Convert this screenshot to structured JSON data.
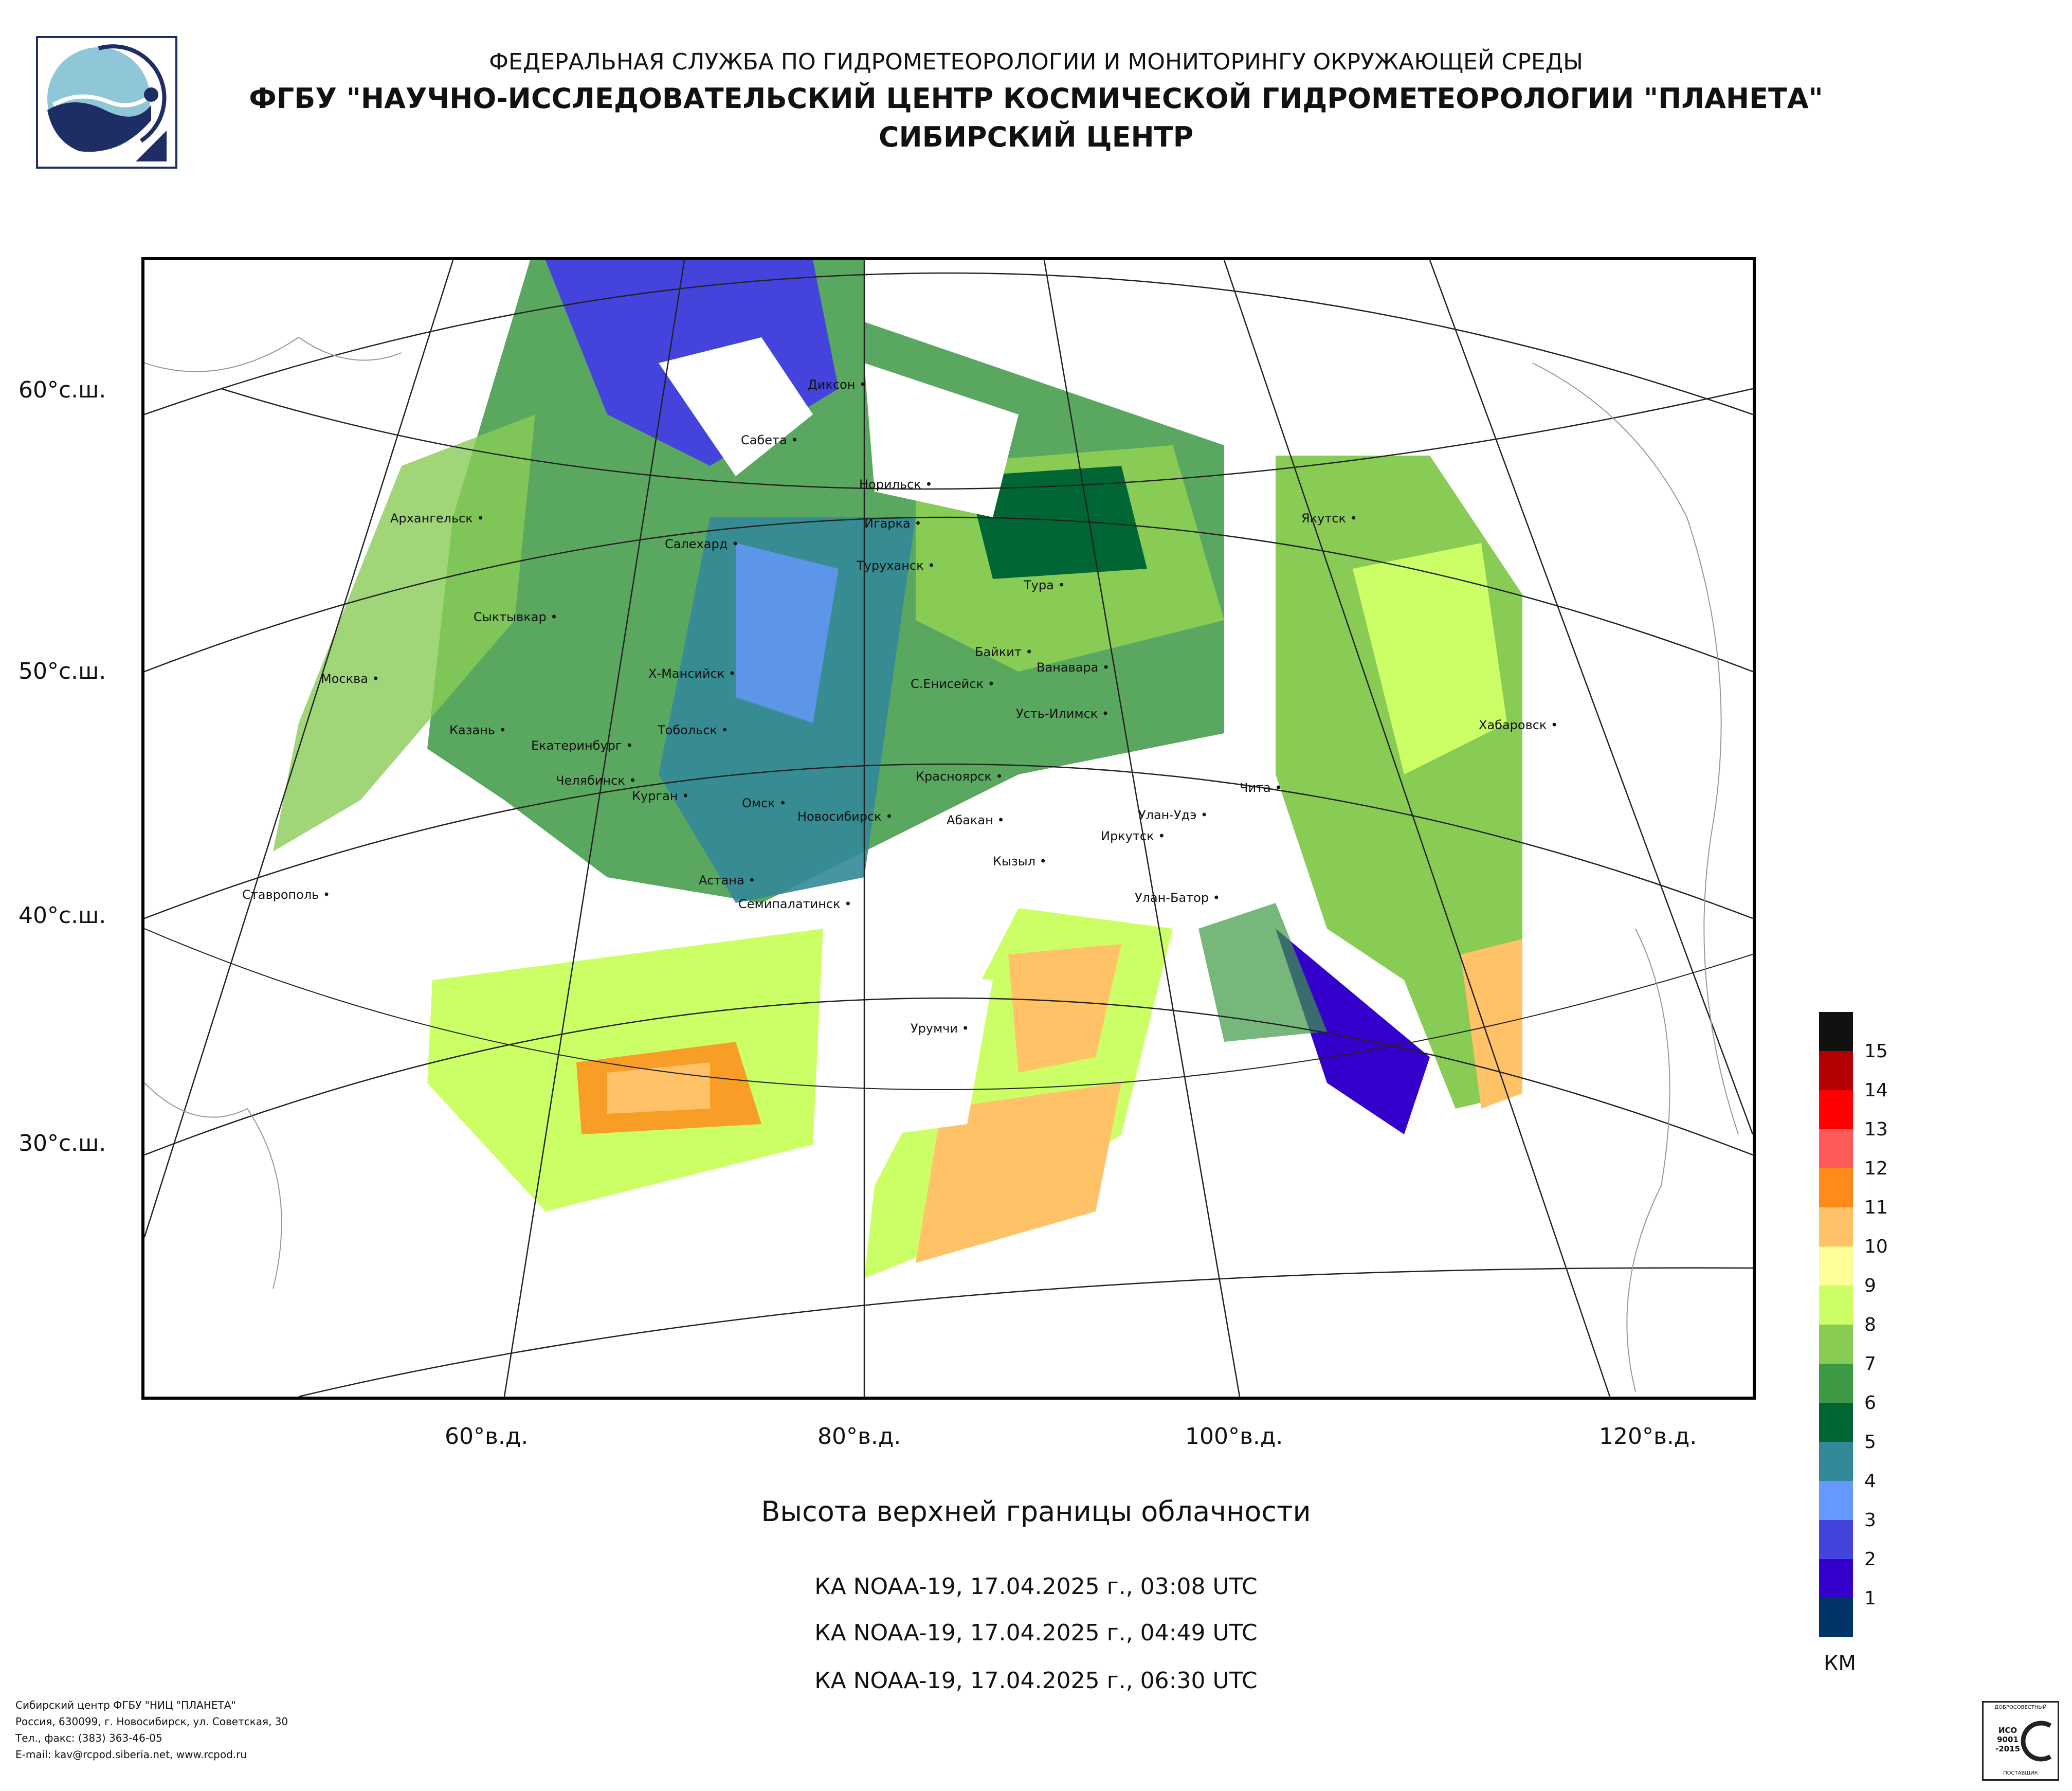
{
  "header": {
    "line1": "ФЕДЕРАЛЬНАЯ СЛУЖБА ПО ГИДРОМЕТЕОРОЛОГИИ И МОНИТОРИНГУ ОКРУЖАЮЩЕЙ СРЕДЫ",
    "line2": "ФГБУ \"НАУЧНО-ИССЛЕДОВАТЕЛЬСКИЙ ЦЕНТР КОСМИЧЕСКОЙ ГИДРОМЕТЕОРОЛОГИИ \"ПЛАНЕТА\"",
    "line3": "СИБИРСКИЙ ЦЕНТР"
  },
  "axes": {
    "lat_labels": [
      "60°с.ш.",
      "50°с.ш.",
      "40°с.ш.",
      "30°с.ш."
    ],
    "lon_labels": [
      "60°в.д.",
      "80°в.д.",
      "100°в.д.",
      "120°в.д."
    ]
  },
  "cities": [
    "Диксон",
    "Сабета",
    "Норильск",
    "Игарка",
    "Якутск",
    "Архангельск",
    "Салехард",
    "Туруханск",
    "Тура",
    "Сыктывкар",
    "Байкит",
    "Ванавара",
    "Москва",
    "Х-Мансийск",
    "С.Енисейск",
    "Усть-Илимск",
    "Хабаровск",
    "Казань",
    "Тобольск",
    "Екатеринбург",
    "Красноярск",
    "Челябинск",
    "Курган",
    "Омск",
    "Чита",
    "Новосибирск",
    "Абакан",
    "Улан-Удэ",
    "Иркутск",
    "Кызыл",
    "Ставрополь",
    "Астана",
    "Улан-Батор",
    "Семипалатинск",
    "Урумчи"
  ],
  "title": "Высота верхней границы облачности",
  "passes": [
    "КА NOAA-19, 17.04.2025 г., 03:08 UTC",
    "КА NOAA-19, 17.04.2025 г., 04:49 UTC",
    "КА NOAA-19, 17.04.2025 г., 06:30 UTC"
  ],
  "legend": {
    "unit": "КМ",
    "levels": [
      {
        "label": "15",
        "color": "#111111"
      },
      {
        "label": "14",
        "color": "#b30000"
      },
      {
        "label": "13",
        "color": "#ff0000"
      },
      {
        "label": "12",
        "color": "#ff5a5a"
      },
      {
        "label": "11",
        "color": "#ff8c1a"
      },
      {
        "label": "10",
        "color": "#ffc266"
      },
      {
        "label": "9",
        "color": "#ffff99"
      },
      {
        "label": "8",
        "color": "#ccff66"
      },
      {
        "label": "7",
        "color": "#88cc55"
      },
      {
        "label": "6",
        "color": "#3d9944"
      },
      {
        "label": "5",
        "color": "#006633"
      },
      {
        "label": "4",
        "color": "#338899"
      },
      {
        "label": "3",
        "color": "#6699ff"
      },
      {
        "label": "2",
        "color": "#4444dd"
      },
      {
        "label": "1",
        "color": "#3300cc"
      },
      {
        "label": "",
        "color": "#003366"
      }
    ]
  },
  "footer": [
    "Сибирский центр ФГБУ \"НИЦ \"ПЛАНЕТА\"",
    "Россия, 630099, г. Новосибирск, ул. Советская, 30",
    "Тел., факс: (383) 363-46-05",
    "E-mail: kav@rcpod.siberia.net, www.rcpod.ru"
  ],
  "cert": {
    "top": "ДОБРОСОВЕСТНЫЙ",
    "mid": "ИСО 9001 -2015",
    "bottom": "ПОСТАВЩИК"
  }
}
